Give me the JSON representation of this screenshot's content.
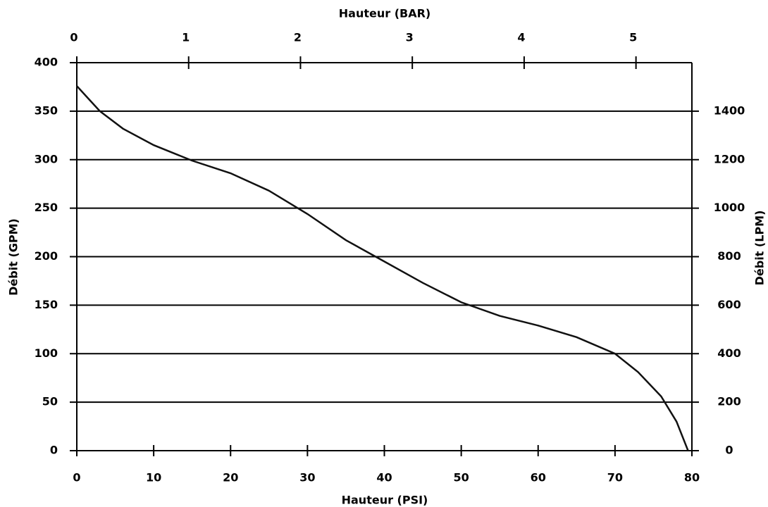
{
  "chart_data": {
    "type": "line",
    "x_label": "Hauteur (PSI)",
    "x2_label": "Hauteur (BAR)",
    "y_label": "Débit (GPM)",
    "y2_label": "Débit (LPM)",
    "x": [
      0,
      3,
      6,
      10,
      15,
      20,
      25,
      30,
      35,
      40,
      45,
      50,
      55,
      60,
      65,
      70,
      73,
      76,
      78,
      79.5
    ],
    "series": [
      {
        "color": "#111111",
        "values": [
          376,
          350,
          332,
          315,
          299,
          286,
          268,
          244,
          217,
          195,
          173,
          153,
          139,
          129,
          117,
          100,
          81,
          56,
          30,
          0
        ]
      }
    ],
    "xlim": [
      0,
      80
    ],
    "xticks": [
      0,
      10,
      20,
      30,
      40,
      50,
      60,
      70,
      80
    ],
    "x2lim": [
      0,
      5.5
    ],
    "x2ticks": [
      0,
      1,
      2,
      3,
      4,
      5
    ],
    "ylim": [
      0,
      400
    ],
    "yticks": [
      0,
      50,
      100,
      150,
      200,
      250,
      300,
      350,
      400
    ],
    "y2lim": [
      0,
      1600
    ],
    "y2ticks": [
      0,
      200,
      400,
      600,
      800,
      1000,
      1200,
      1400
    ],
    "grid": true
  }
}
